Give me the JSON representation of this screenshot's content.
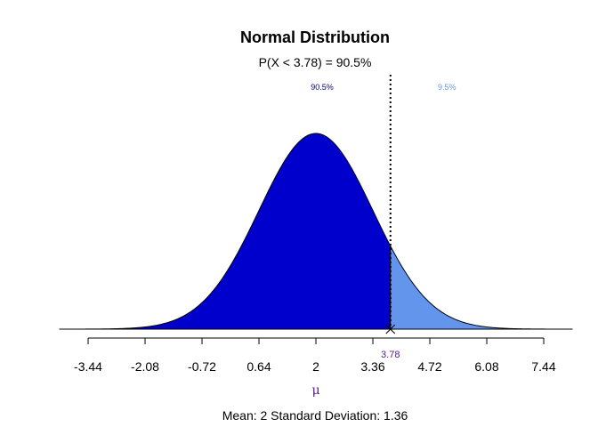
{
  "chart_data": {
    "type": "area",
    "title": "Normal Distribution",
    "subtitle": "P(X < 3.78) = 90.5%",
    "distribution": {
      "mean": 2,
      "sd": 1.36
    },
    "cutoff": 3.78,
    "cutoff_label": "3.78",
    "left_percent_label": "90.5%",
    "right_percent_label": "9.5%",
    "x_ticks": [
      -3.44,
      -2.08,
      -0.72,
      0.64,
      2,
      3.36,
      4.72,
      6.08,
      7.44
    ],
    "x_tick_labels": [
      "-3.44",
      "-2.08",
      "-0.72",
      "0.64",
      "2",
      "3.36",
      "4.72",
      "6.08",
      "7.44"
    ],
    "xlim": [
      -3.44,
      7.44
    ],
    "xlabel": "μ",
    "footer": "Mean: 2  Standard Deviation: 1.36",
    "colors": {
      "left_fill": "#0000CD",
      "right_fill": "#6495ED",
      "left_label": "#00008B",
      "right_label": "#6495ED",
      "marker_label": "#551A8B",
      "axis_label": "#551A8B",
      "line": "#000000"
    }
  }
}
